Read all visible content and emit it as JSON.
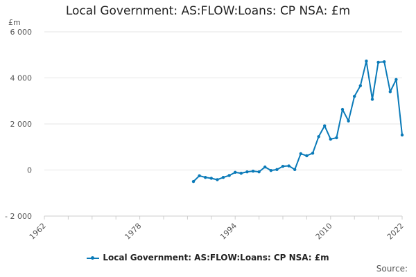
{
  "chart_data": {
    "type": "line",
    "title": "Local Government: AS:FLOW:Loans: CP NSA: £m",
    "ylabel": "£m",
    "xlabel": "",
    "xlim": [
      1962,
      2022
    ],
    "ylim": [
      -2000,
      6000
    ],
    "x_ticks": [
      1962,
      1978,
      1994,
      2010,
      2022
    ],
    "y_ticks": [
      -2000,
      0,
      2000,
      4000,
      6000
    ],
    "y_tick_labels": [
      "- 2 000",
      "0",
      "2 000",
      "4 000",
      "6 000"
    ],
    "grid": "horizontal",
    "legend_position": "bottom",
    "series": [
      {
        "name": "Local Government: AS:FLOW:Loans: CP NSA: £m",
        "color": "#0a7ab8",
        "x": [
          1987,
          1988,
          1989,
          1990,
          1991,
          1992,
          1993,
          1994,
          1995,
          1996,
          1997,
          1998,
          1999,
          2000,
          2001,
          2002,
          2003,
          2004,
          2005,
          2006,
          2007,
          2008,
          2009,
          2010,
          2011,
          2012,
          2013,
          2014,
          2015,
          2016,
          2017,
          2018,
          2019,
          2020,
          2021,
          2022
        ],
        "y": [
          -500,
          -250,
          -320,
          -360,
          -420,
          -320,
          -240,
          -100,
          -140,
          -80,
          -50,
          -80,
          130,
          -20,
          20,
          160,
          180,
          20,
          710,
          620,
          730,
          1450,
          1920,
          1340,
          1400,
          2630,
          2130,
          3200,
          3660,
          4730,
          3070,
          4680,
          4700,
          3400,
          3930,
          1520
        ]
      }
    ]
  },
  "source_label": "Source:"
}
